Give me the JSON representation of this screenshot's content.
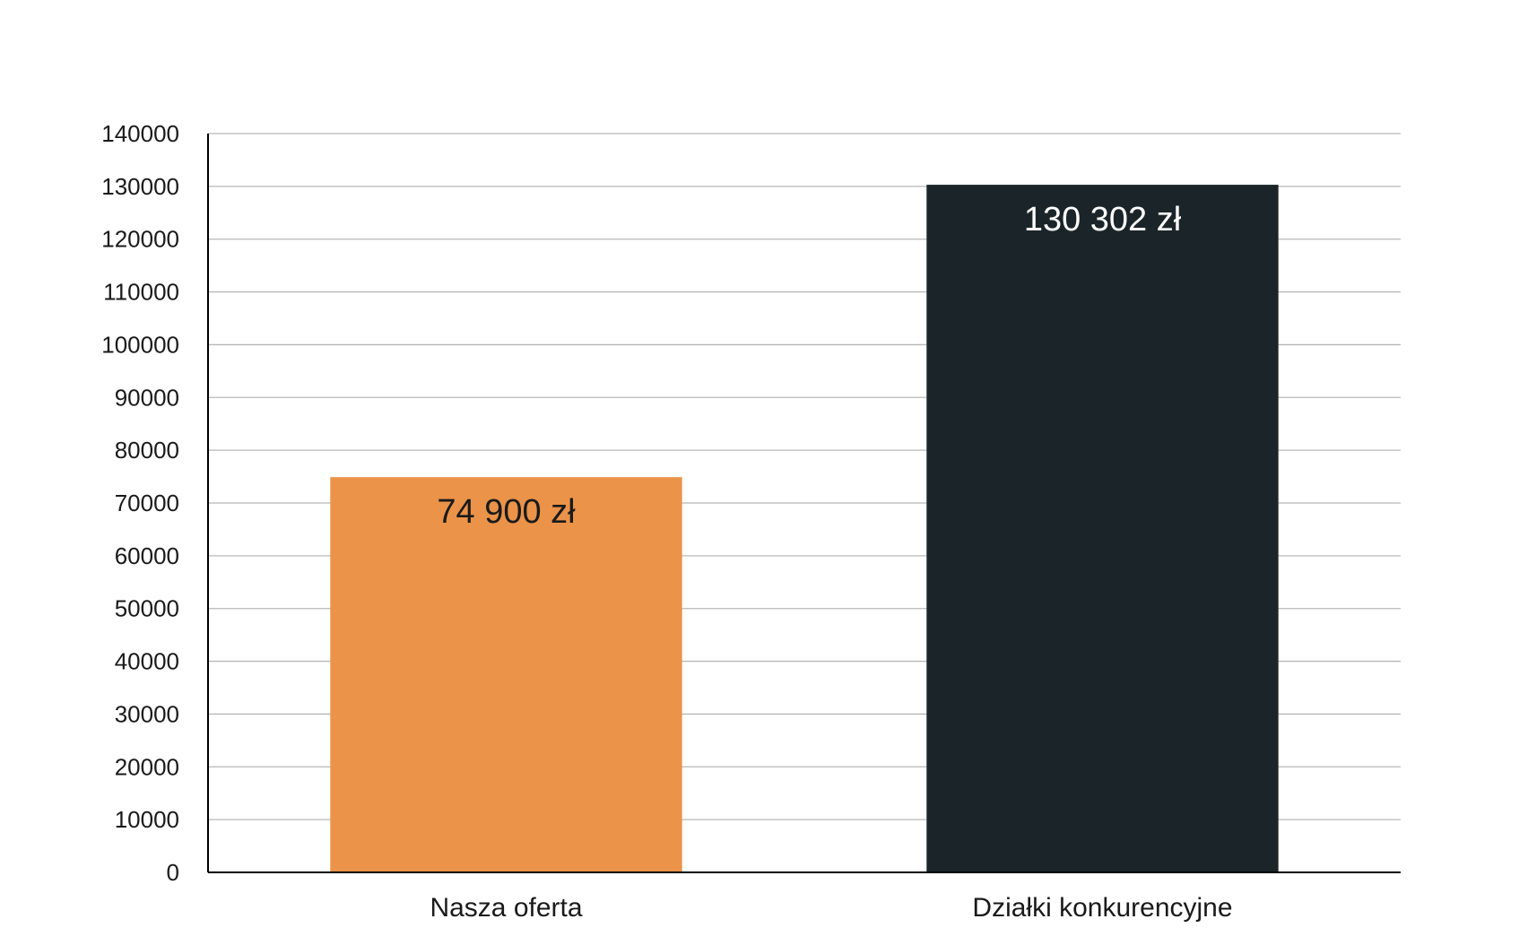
{
  "chart_data": {
    "type": "bar",
    "categories": [
      "Nasza oferta",
      "Działki konkurencyjne"
    ],
    "values": [
      74900,
      130302
    ],
    "data_labels": [
      "74 900 zł",
      "130 302 zł"
    ],
    "bar_colors": [
      "#EA9349",
      "#1B2529"
    ],
    "label_colors": [
      "#1a1a1a",
      "#ffffff"
    ],
    "ylim": [
      0,
      140000
    ],
    "ytick_step": 10000,
    "yticks": [
      "0",
      "10000",
      "20000",
      "30000",
      "40000",
      "50000",
      "60000",
      "70000",
      "80000",
      "90000",
      "100000",
      "110000",
      "120000",
      "130000",
      "140000"
    ],
    "grid": true,
    "legend": "none",
    "title": "",
    "xlabel": "",
    "ylabel": ""
  }
}
